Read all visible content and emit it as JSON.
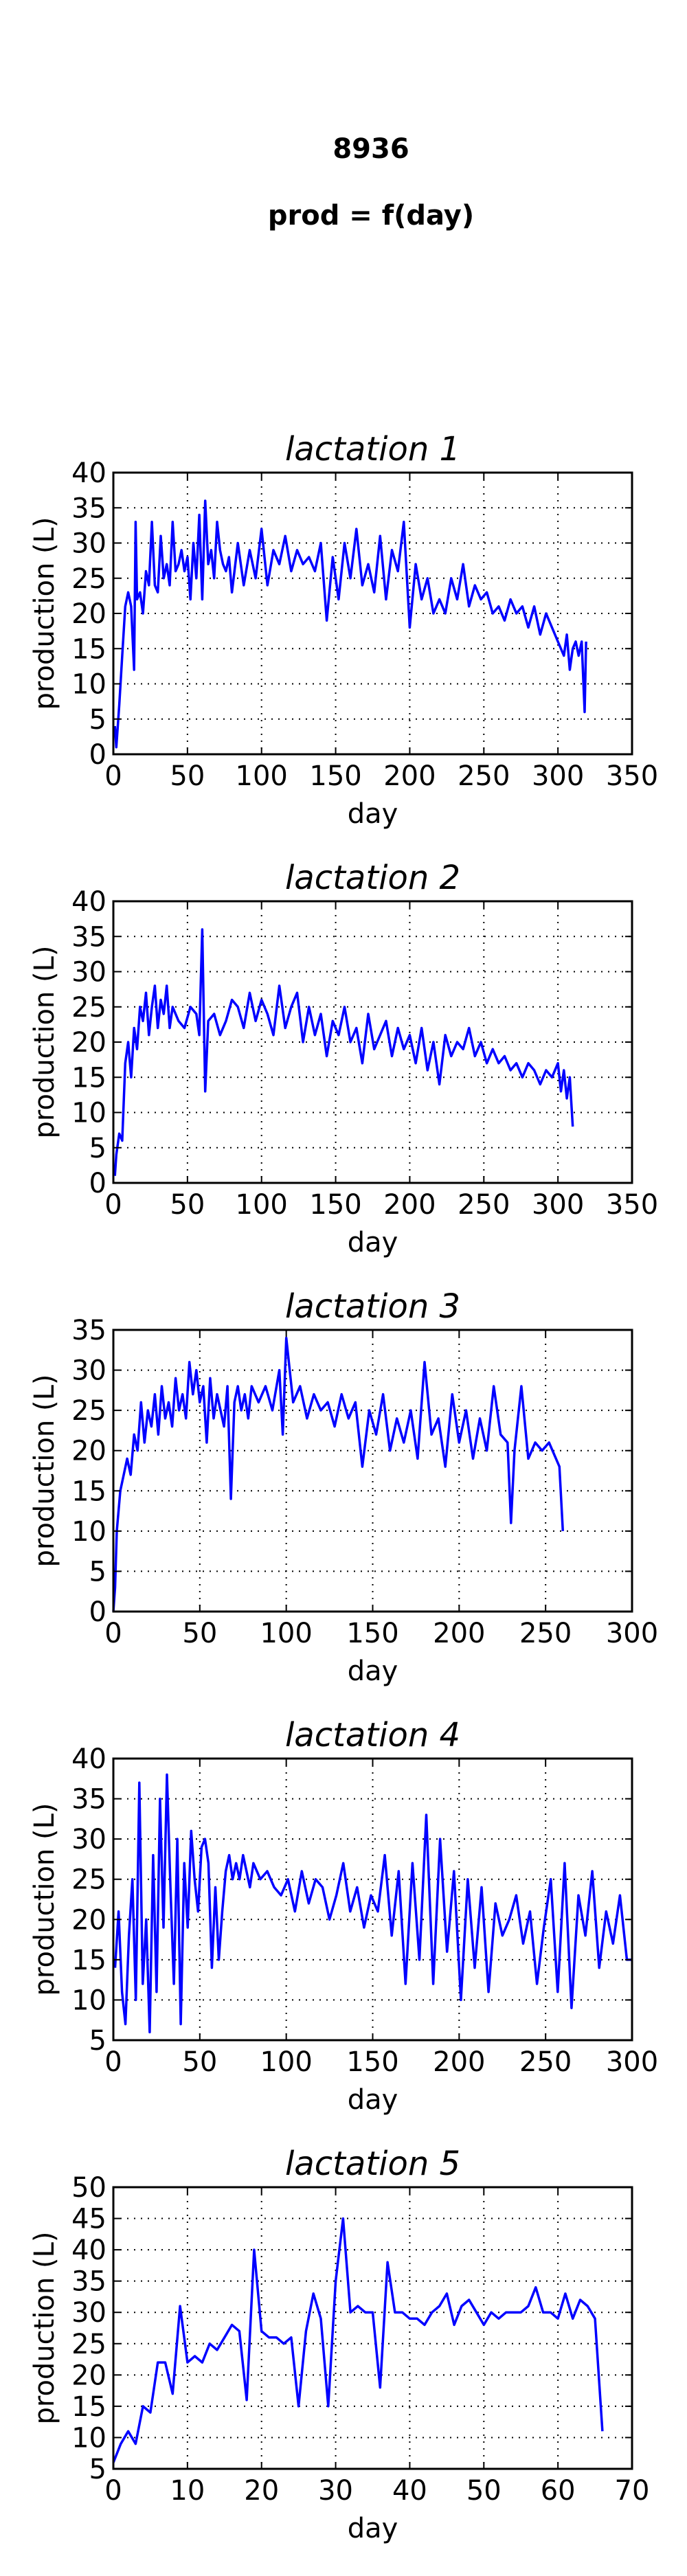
{
  "figure": {
    "suptitle": "8936",
    "subtitle": "prod = f(day)"
  },
  "colors": {
    "series": "#0000ff",
    "axes": "#000000",
    "background": "#ffffff"
  },
  "chart_data": [
    {
      "type": "line",
      "title": "lactation 1",
      "xlabel": "day",
      "ylabel": "production (L)",
      "xlim": [
        0,
        350
      ],
      "ylim": [
        0,
        40
      ],
      "xticks": [
        0,
        50,
        100,
        150,
        200,
        250,
        300,
        350
      ],
      "yticks": [
        0,
        5,
        10,
        15,
        20,
        25,
        30,
        35,
        40
      ],
      "grid": true,
      "series": [
        {
          "x": [
            1,
            2,
            4,
            6,
            8,
            10,
            12,
            14,
            15,
            16,
            18,
            20,
            22,
            24,
            26,
            28,
            30,
            32,
            34,
            36,
            38,
            40,
            42,
            44,
            46,
            48,
            50,
            52,
            54,
            56,
            58,
            60,
            62,
            64,
            66,
            68,
            70,
            72,
            74,
            76,
            78,
            80,
            84,
            88,
            92,
            96,
            100,
            104,
            108,
            112,
            116,
            120,
            124,
            128,
            132,
            136,
            140,
            144,
            148,
            152,
            156,
            160,
            164,
            168,
            172,
            176,
            180,
            184,
            188,
            192,
            196,
            200,
            204,
            208,
            212,
            216,
            220,
            224,
            228,
            232,
            236,
            240,
            244,
            248,
            252,
            256,
            260,
            264,
            268,
            272,
            276,
            280,
            284,
            288,
            292,
            296,
            300,
            304,
            306,
            308,
            310,
            312,
            314,
            316,
            318,
            319
          ],
          "y": [
            4,
            1,
            7,
            14,
            21,
            23,
            21,
            12,
            33,
            22,
            23,
            20,
            26,
            24,
            33,
            24,
            23,
            31,
            25,
            27,
            24,
            33,
            26,
            27,
            29,
            26,
            28,
            22,
            30,
            25,
            34,
            22,
            36,
            27,
            29,
            25,
            33,
            29,
            27,
            26,
            28,
            23,
            30,
            24,
            29,
            25,
            32,
            24,
            29,
            27,
            31,
            26,
            29,
            27,
            28,
            26,
            30,
            19,
            28,
            22,
            30,
            25,
            32,
            24,
            27,
            23,
            31,
            22,
            29,
            26,
            33,
            18,
            27,
            22,
            25,
            20,
            22,
            20,
            25,
            22,
            27,
            21,
            24,
            22,
            23,
            20,
            21,
            19,
            22,
            20,
            21,
            18,
            21,
            17,
            20,
            18,
            16,
            14,
            17,
            12,
            15,
            16,
            14,
            16,
            6,
            16
          ]
        }
      ]
    },
    {
      "type": "line",
      "title": "lactation 2",
      "xlabel": "day",
      "ylabel": "production (L)",
      "xlim": [
        0,
        350
      ],
      "ylim": [
        0,
        40
      ],
      "xticks": [
        0,
        50,
        100,
        150,
        200,
        250,
        300,
        350
      ],
      "yticks": [
        0,
        5,
        10,
        15,
        20,
        25,
        30,
        35,
        40
      ],
      "grid": true,
      "series": [
        {
          "x": [
            1,
            2,
            4,
            6,
            8,
            10,
            12,
            14,
            16,
            18,
            20,
            22,
            24,
            26,
            28,
            30,
            32,
            34,
            36,
            38,
            40,
            44,
            48,
            52,
            56,
            58,
            60,
            62,
            64,
            68,
            72,
            76,
            80,
            84,
            88,
            92,
            96,
            100,
            104,
            108,
            112,
            116,
            120,
            124,
            128,
            132,
            136,
            140,
            144,
            148,
            152,
            156,
            160,
            164,
            168,
            172,
            176,
            180,
            184,
            188,
            192,
            196,
            200,
            204,
            208,
            212,
            216,
            220,
            224,
            228,
            232,
            236,
            240,
            244,
            248,
            252,
            256,
            260,
            264,
            268,
            272,
            276,
            280,
            284,
            288,
            292,
            296,
            300,
            302,
            304,
            306,
            308,
            310
          ],
          "y": [
            1,
            4,
            7,
            6,
            17,
            20,
            15,
            22,
            19,
            25,
            23,
            27,
            21,
            25,
            28,
            22,
            26,
            24,
            28,
            22,
            25,
            23,
            22,
            25,
            24,
            21,
            36,
            13,
            23,
            24,
            21,
            23,
            26,
            25,
            22,
            27,
            23,
            26,
            24,
            21,
            28,
            22,
            25,
            27,
            20,
            25,
            21,
            24,
            18,
            23,
            21,
            25,
            20,
            22,
            17,
            24,
            19,
            21,
            23,
            18,
            22,
            19,
            21,
            17,
            22,
            16,
            20,
            14,
            21,
            18,
            20,
            19,
            22,
            18,
            20,
            17,
            19,
            17,
            18,
            16,
            17,
            15,
            17,
            16,
            14,
            16,
            15,
            17,
            13,
            16,
            12,
            15,
            8
          ]
        }
      ]
    },
    {
      "type": "line",
      "title": "lactation 3",
      "xlabel": "day",
      "ylabel": "production (L)",
      "xlim": [
        0,
        300
      ],
      "ylim": [
        0,
        35
      ],
      "xticks": [
        0,
        50,
        100,
        150,
        200,
        250,
        300
      ],
      "yticks": [
        0,
        5,
        10,
        15,
        20,
        25,
        30,
        35
      ],
      "grid": true,
      "series": [
        {
          "x": [
            0,
            1,
            2,
            4,
            6,
            8,
            10,
            12,
            14,
            16,
            18,
            20,
            22,
            24,
            26,
            28,
            30,
            32,
            34,
            36,
            38,
            40,
            42,
            44,
            46,
            48,
            50,
            52,
            54,
            56,
            58,
            60,
            62,
            64,
            66,
            68,
            70,
            72,
            74,
            76,
            78,
            80,
            84,
            88,
            92,
            96,
            98,
            100,
            104,
            108,
            112,
            116,
            120,
            124,
            128,
            132,
            136,
            140,
            144,
            148,
            152,
            156,
            160,
            164,
            168,
            172,
            176,
            180,
            184,
            188,
            192,
            196,
            200,
            204,
            208,
            212,
            216,
            220,
            224,
            228,
            230,
            232,
            236,
            240,
            244,
            248,
            252,
            256,
            258,
            260
          ],
          "y": [
            0,
            3,
            10,
            15,
            17,
            19,
            17,
            22,
            20,
            26,
            21,
            25,
            23,
            27,
            22,
            28,
            24,
            26,
            23,
            29,
            25,
            27,
            24,
            31,
            27,
            30,
            26,
            28,
            21,
            29,
            24,
            27,
            25,
            23,
            28,
            14,
            26,
            28,
            25,
            27,
            24,
            28,
            26,
            28,
            25,
            30,
            22,
            34,
            26,
            28,
            24,
            27,
            25,
            26,
            23,
            27,
            24,
            26,
            18,
            25,
            22,
            27,
            20,
            24,
            21,
            25,
            19,
            31,
            22,
            24,
            18,
            27,
            21,
            25,
            19,
            24,
            20,
            28,
            22,
            21,
            11,
            20,
            28,
            19,
            21,
            20,
            21,
            19,
            18,
            10
          ]
        }
      ]
    },
    {
      "type": "line",
      "title": "lactation 4",
      "xlabel": "day",
      "ylabel": "production (L)",
      "xlim": [
        0,
        300
      ],
      "ylim": [
        5,
        40
      ],
      "xticks": [
        0,
        50,
        100,
        150,
        200,
        250,
        300
      ],
      "yticks": [
        5,
        10,
        15,
        20,
        25,
        30,
        35,
        40
      ],
      "grid": true,
      "series": [
        {
          "x": [
            1,
            3,
            5,
            7,
            9,
            11,
            13,
            15,
            17,
            19,
            21,
            23,
            25,
            27,
            29,
            31,
            33,
            35,
            37,
            39,
            41,
            43,
            45,
            47,
            49,
            51,
            53,
            55,
            57,
            59,
            61,
            63,
            65,
            67,
            69,
            71,
            73,
            75,
            77,
            79,
            81,
            85,
            89,
            93,
            97,
            101,
            105,
            109,
            113,
            117,
            121,
            125,
            129,
            133,
            137,
            141,
            145,
            149,
            153,
            157,
            161,
            165,
            169,
            173,
            177,
            181,
            185,
            189,
            193,
            197,
            201,
            205,
            209,
            213,
            217,
            221,
            225,
            229,
            233,
            237,
            241,
            245,
            249,
            253,
            257,
            261,
            265,
            269,
            273,
            277,
            281,
            285,
            289,
            293,
            297,
            300
          ],
          "y": [
            14,
            21,
            11,
            7,
            18,
            25,
            10,
            37,
            12,
            20,
            6,
            28,
            11,
            35,
            19,
            38,
            24,
            12,
            30,
            7,
            27,
            19,
            31,
            25,
            21,
            29,
            30,
            27,
            14,
            24,
            15,
            21,
            26,
            28,
            25,
            27,
            25,
            28,
            26,
            24,
            27,
            25,
            26,
            24,
            23,
            25,
            21,
            26,
            22,
            25,
            24,
            20,
            23,
            27,
            21,
            24,
            19,
            23,
            21,
            28,
            18,
            26,
            12,
            27,
            15,
            33,
            12,
            30,
            16,
            26,
            10,
            25,
            14,
            24,
            11,
            22,
            18,
            20,
            23,
            17,
            21,
            12,
            19,
            25,
            11,
            27,
            9,
            23,
            18,
            26,
            14,
            21,
            17,
            23,
            15,
            15
          ]
        }
      ]
    },
    {
      "type": "line",
      "title": "lactation 5",
      "xlabel": "day",
      "ylabel": "production (L)",
      "xlim": [
        0,
        70
      ],
      "ylim": [
        5,
        50
      ],
      "xticks": [
        0,
        10,
        20,
        30,
        40,
        50,
        60,
        70
      ],
      "yticks": [
        5,
        10,
        15,
        20,
        25,
        30,
        35,
        40,
        45,
        50
      ],
      "grid": true,
      "series": [
        {
          "x": [
            0,
            1,
            2,
            3,
            4,
            5,
            6,
            7,
            8,
            9,
            10,
            11,
            12,
            13,
            14,
            15,
            16,
            17,
            18,
            19,
            20,
            21,
            22,
            23,
            24,
            25,
            26,
            27,
            28,
            29,
            30,
            31,
            32,
            33,
            34,
            35,
            36,
            37,
            38,
            39,
            40,
            41,
            42,
            43,
            44,
            45,
            46,
            47,
            48,
            49,
            50,
            51,
            52,
            53,
            54,
            55,
            56,
            57,
            58,
            59,
            60,
            61,
            62,
            63,
            64,
            65,
            66
          ],
          "y": [
            6,
            9,
            11,
            9,
            15,
            14,
            22,
            22,
            17,
            31,
            22,
            23,
            22,
            25,
            24,
            26,
            28,
            27,
            16,
            40,
            27,
            26,
            26,
            25,
            26,
            15,
            27,
            33,
            29,
            15,
            35,
            45,
            30,
            31,
            30,
            30,
            18,
            38,
            30,
            30,
            29,
            29,
            28,
            30,
            31,
            33,
            28,
            31,
            32,
            30,
            28,
            30,
            29,
            30,
            30,
            30,
            31,
            34,
            30,
            30,
            29,
            33,
            29,
            32,
            31,
            29,
            11
          ]
        }
      ]
    }
  ]
}
